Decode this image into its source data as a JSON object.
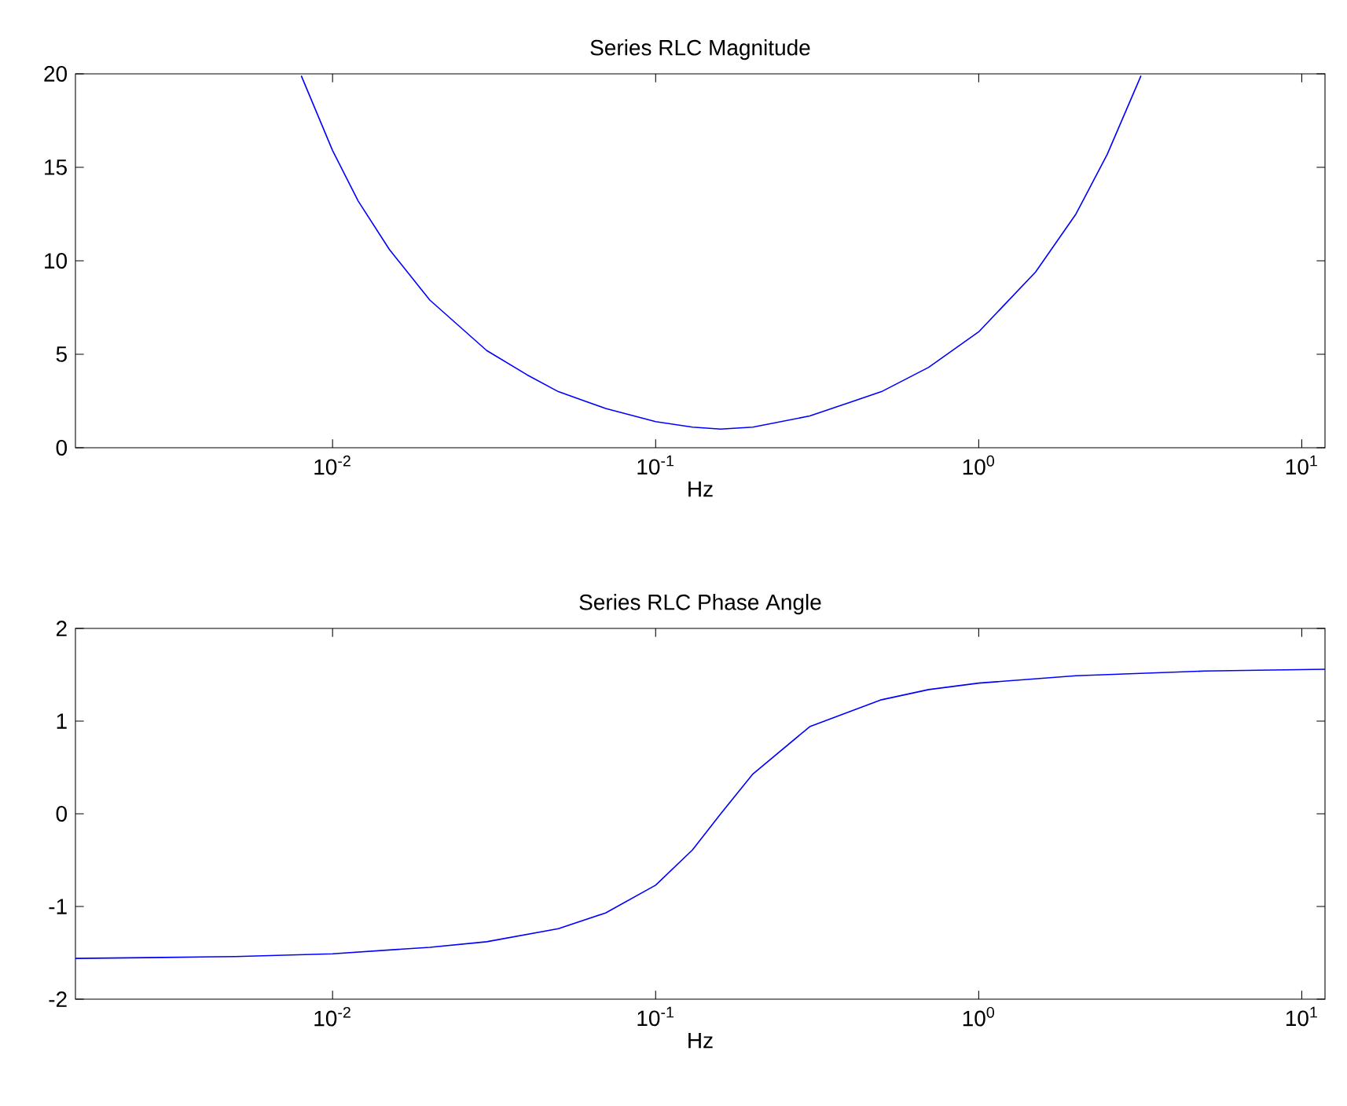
{
  "chart_data": [
    {
      "type": "line",
      "title": "Series RLC Magnitude",
      "xlabel": "Hz",
      "log": "x",
      "color": "#0000ff",
      "x": [
        0.008,
        0.01,
        0.012,
        0.015,
        0.02,
        0.03,
        0.04,
        0.05,
        0.07,
        0.1,
        0.13,
        0.159,
        0.2,
        0.3,
        0.5,
        0.7,
        1,
        1.5,
        2,
        2.5,
        3.18
      ],
      "values": [
        19.9,
        15.9,
        13.2,
        10.6,
        7.9,
        5.2,
        3.9,
        3.0,
        2.1,
        1.4,
        1.1,
        1.0,
        1.1,
        1.7,
        3.0,
        4.3,
        6.2,
        9.4,
        12.5,
        15.7,
        19.9
      ],
      "xlim": [
        0.0016,
        11.8
      ],
      "ylim": [
        0,
        20
      ],
      "xticks": [
        {
          "value": 0.01,
          "label": "10$^{-2}$"
        },
        {
          "value": 0.1,
          "label": "10$^{-1}$"
        },
        {
          "value": 1,
          "label": "10$^{0}$"
        },
        {
          "value": 10,
          "label": "10$^{1}$"
        }
      ],
      "yticks": [
        0,
        5,
        10,
        15,
        20
      ]
    },
    {
      "type": "line",
      "title": "Series RLC Phase Angle",
      "xlabel": "Hz",
      "log": "x",
      "color": "#0000ff",
      "x": [
        0.0016,
        0.003,
        0.005,
        0.01,
        0.02,
        0.03,
        0.05,
        0.07,
        0.1,
        0.13,
        0.159,
        0.2,
        0.3,
        0.5,
        0.7,
        1,
        2,
        5,
        11.8
      ],
      "values": [
        -1.56,
        -1.55,
        -1.54,
        -1.51,
        -1.44,
        -1.38,
        -1.24,
        -1.07,
        -0.77,
        -0.39,
        0,
        0.43,
        0.94,
        1.23,
        1.34,
        1.41,
        1.49,
        1.54,
        1.56
      ],
      "xlim": [
        0.0016,
        11.8
      ],
      "ylim": [
        -2,
        2
      ],
      "xticks": [
        {
          "value": 0.01,
          "label": "10$^{-2}$"
        },
        {
          "value": 0.1,
          "label": "10$^{-1}$"
        },
        {
          "value": 1,
          "label": "10$^{0}$"
        },
        {
          "value": 10,
          "label": "10$^{1}$"
        }
      ],
      "yticks": [
        -2,
        -1,
        0,
        1,
        2
      ]
    }
  ]
}
